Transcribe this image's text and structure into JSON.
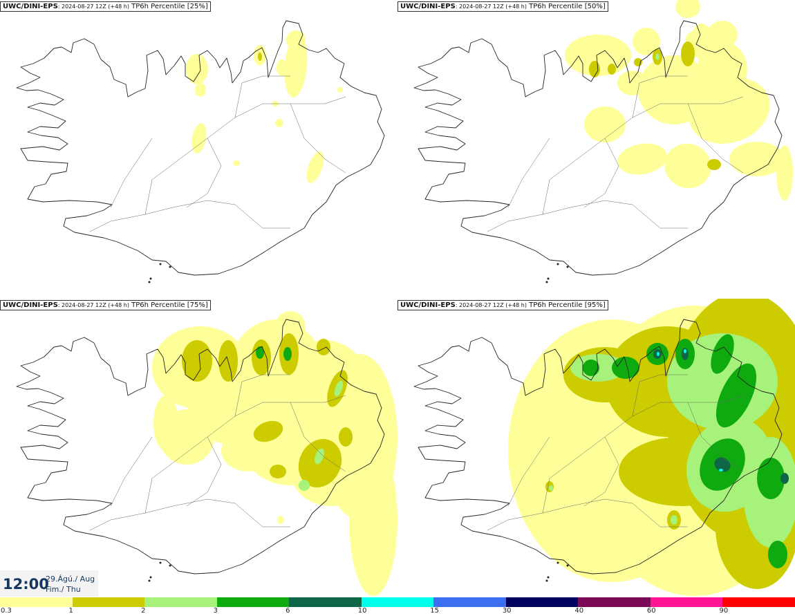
{
  "panels": [
    {
      "source": "UWC/DINI-EPS",
      "run": ": 2024-08-27 12Z (+48 h)",
      "field": " TP6h Percentile [25%]"
    },
    {
      "source": "UWC/DINI-EPS",
      "run": ": 2024-08-27 12Z (+48 h)",
      "field": " TP6h Percentile [50%]"
    },
    {
      "source": "UWC/DINI-EPS",
      "run": ": 2024-08-27 12Z (+48 h)",
      "field": " TP6h Percentile [75%]"
    },
    {
      "source": "UWC/DINI-EPS",
      "run": ": 2024-08-27 12Z (+48 h)",
      "field": " TP6h Percentile [95%]"
    }
  ],
  "valid": {
    "time": "12:00",
    "date_line1": "29.Ágú./ Aug",
    "date_line2": "Fim./ Thu"
  },
  "legend": {
    "labels": [
      "0.3",
      "1",
      "2",
      "3",
      "6",
      "10",
      "15",
      "30",
      "40",
      "60",
      "90"
    ],
    "colors": [
      "#ffff99",
      "#cccc00",
      "#a6f27a",
      "#0faa0f",
      "#0e6646",
      "#00ffea",
      "#3d6ef2",
      "#00005e",
      "#7a0a55",
      "#ff1493",
      "#ff0000"
    ]
  }
}
